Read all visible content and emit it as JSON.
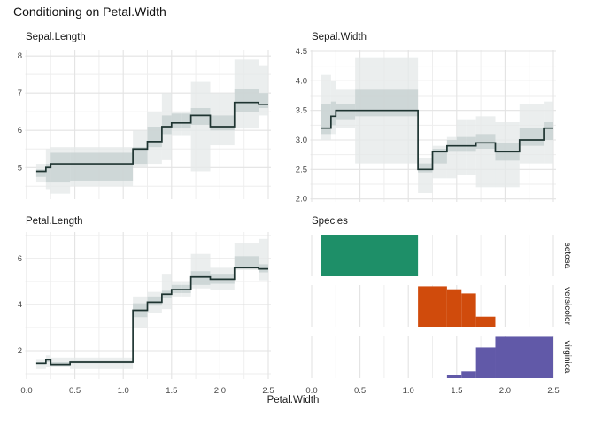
{
  "title": "Conditioning on Petal.Width",
  "x_axis": {
    "label": "Petal.Width",
    "tick_values": [
      0,
      0.5,
      1.0,
      1.5,
      2.0,
      2.5
    ],
    "tick_labels": [
      "0.0",
      "0.5",
      "1.0",
      "1.5",
      "2.0",
      "2.5"
    ],
    "minor_values": [
      0.25,
      0.75,
      1.25,
      1.75,
      2.25
    ],
    "range": [
      0.0,
      2.5
    ]
  },
  "colors": {
    "band_outer": "#e6e9e9",
    "band_inner": "#c7d1d1",
    "step_line": "#1e3431",
    "grid_major": "#e3e3e3",
    "grid_minor": "#eeeeee",
    "tick_text": "#454545",
    "title_text": "#1a1a1a",
    "setosa": "#1e8f68",
    "versicolor": "#d04b0c",
    "virginica": "#6159a8"
  },
  "bin_edges": [
    0.1,
    0.2,
    0.25,
    0.45,
    1.1,
    1.25,
    1.4,
    1.5,
    1.6,
    1.7,
    1.9,
    2.15,
    2.4,
    2.5
  ],
  "chart_data": [
    {
      "type": "step-band",
      "title": "Sepal.Length",
      "ylim": [
        4.15,
        8.17
      ],
      "ytick_values": [
        5,
        6,
        7,
        8
      ],
      "ytick_labels": [
        "5",
        "6",
        "7",
        "8"
      ],
      "yminor_values": [
        4.5,
        5.5,
        6.5,
        7.5
      ],
      "median": [
        4.9,
        5.0,
        5.1,
        5.1,
        5.5,
        5.7,
        6.1,
        6.2,
        6.2,
        6.4,
        6.1,
        6.75,
        6.7
      ],
      "inner": [
        [
          4.75,
          4.95
        ],
        [
          4.6,
          5.1
        ],
        [
          4.6,
          5.4
        ],
        [
          4.65,
          5.4
        ],
        [
          5.1,
          5.55
        ],
        [
          5.55,
          6.1
        ],
        [
          5.9,
          6.4
        ],
        [
          6.05,
          6.45
        ],
        [
          6.05,
          6.45
        ],
        [
          6.15,
          6.6
        ],
        [
          6.0,
          6.4
        ],
        [
          6.5,
          7.1
        ],
        [
          6.6,
          7.0
        ]
      ],
      "outer": [
        [
          4.6,
          5.1
        ],
        [
          4.4,
          5.5
        ],
        [
          4.3,
          5.55
        ],
        [
          4.5,
          5.55
        ],
        [
          5.0,
          6.0
        ],
        [
          5.1,
          6.5
        ],
        [
          5.2,
          7.0
        ],
        [
          5.85,
          6.5
        ],
        [
          5.85,
          6.5
        ],
        [
          4.9,
          7.3
        ],
        [
          5.6,
          7.0
        ],
        [
          6.05,
          7.9
        ],
        [
          6.4,
          7.75
        ]
      ]
    },
    {
      "type": "step-band",
      "title": "Sepal.Width",
      "ylim": [
        1.95,
        4.53
      ],
      "ytick_values": [
        2.0,
        2.5,
        3.0,
        3.5,
        4.0,
        4.5
      ],
      "ytick_labels": [
        "2.0",
        "2.5",
        "3.0",
        "3.5",
        "4.0",
        "4.5"
      ],
      "yminor_values": [
        2.25,
        2.75,
        3.25,
        3.75,
        4.25
      ],
      "median": [
        3.2,
        3.4,
        3.5,
        3.5,
        2.5,
        2.8,
        2.9,
        2.9,
        2.9,
        2.95,
        2.8,
        3.0,
        3.2
      ],
      "inner": [
        [
          3.1,
          3.6
        ],
        [
          3.25,
          3.65
        ],
        [
          3.35,
          3.6
        ],
        [
          3.4,
          3.85
        ],
        [
          2.45,
          2.6
        ],
        [
          2.6,
          2.85
        ],
        [
          2.8,
          3.0
        ],
        [
          2.8,
          3.05
        ],
        [
          2.8,
          3.05
        ],
        [
          2.85,
          3.1
        ],
        [
          2.65,
          2.95
        ],
        [
          2.9,
          3.2
        ],
        [
          3.0,
          3.3
        ]
      ],
      "outer": [
        [
          3.0,
          4.1
        ],
        [
          3.1,
          4.0
        ],
        [
          3.2,
          3.85
        ],
        [
          2.6,
          4.4
        ],
        [
          2.1,
          2.7
        ],
        [
          2.35,
          2.9
        ],
        [
          2.35,
          3.05
        ],
        [
          2.4,
          3.35
        ],
        [
          2.4,
          3.35
        ],
        [
          2.2,
          3.4
        ],
        [
          2.2,
          3.3
        ],
        [
          2.6,
          3.6
        ],
        [
          2.6,
          3.65
        ]
      ]
    },
    {
      "type": "step-band",
      "title": "Petal.Length",
      "ylim": [
        0.77,
        7.15
      ],
      "ytick_values": [
        2,
        4,
        6
      ],
      "ytick_labels": [
        "2",
        "4",
        "6"
      ],
      "yminor_values": [
        1,
        3,
        5,
        7
      ],
      "median": [
        1.45,
        1.6,
        1.4,
        1.5,
        3.75,
        4.1,
        4.45,
        4.65,
        4.65,
        5.2,
        5.1,
        5.6,
        5.55
      ],
      "inner": [
        [
          1.4,
          1.5
        ],
        [
          1.5,
          1.65
        ],
        [
          1.35,
          1.5
        ],
        [
          1.45,
          1.55
        ],
        [
          3.45,
          4.05
        ],
        [
          3.95,
          4.35
        ],
        [
          4.3,
          4.6
        ],
        [
          4.5,
          4.85
        ],
        [
          4.5,
          4.85
        ],
        [
          4.85,
          5.45
        ],
        [
          4.9,
          5.3
        ],
        [
          5.65,
          6.1
        ],
        [
          5.4,
          5.75
        ]
      ],
      "outer": [
        [
          1.2,
          1.6
        ],
        [
          1.3,
          1.8
        ],
        [
          1.3,
          1.7
        ],
        [
          1.2,
          1.7
        ],
        [
          3.0,
          4.35
        ],
        [
          3.65,
          4.55
        ],
        [
          3.8,
          5.3
        ],
        [
          4.35,
          5.0
        ],
        [
          4.35,
          5.0
        ],
        [
          4.7,
          6.2
        ],
        [
          4.65,
          5.6
        ],
        [
          5.5,
          6.65
        ],
        [
          5.05,
          6.85
        ]
      ]
    },
    {
      "type": "spinogram",
      "title": "Species",
      "facets": [
        {
          "label": "setosa",
          "color_key": "setosa",
          "bars": [
            [
              0.1,
              1.1,
              1.0
            ]
          ]
        },
        {
          "label": "versicolor",
          "color_key": "versicolor",
          "bars": [
            [
              1.1,
              1.4,
              0.97
            ],
            [
              1.4,
              1.55,
              0.9
            ],
            [
              1.55,
              1.7,
              0.8
            ],
            [
              1.7,
              1.9,
              0.24
            ]
          ]
        },
        {
          "label": "virginica",
          "color_key": "virginica",
          "bars": [
            [
              1.4,
              1.55,
              0.07
            ],
            [
              1.55,
              1.7,
              0.16
            ],
            [
              1.7,
              1.9,
              0.72
            ],
            [
              1.9,
              2.5,
              0.97
            ]
          ]
        }
      ]
    }
  ]
}
